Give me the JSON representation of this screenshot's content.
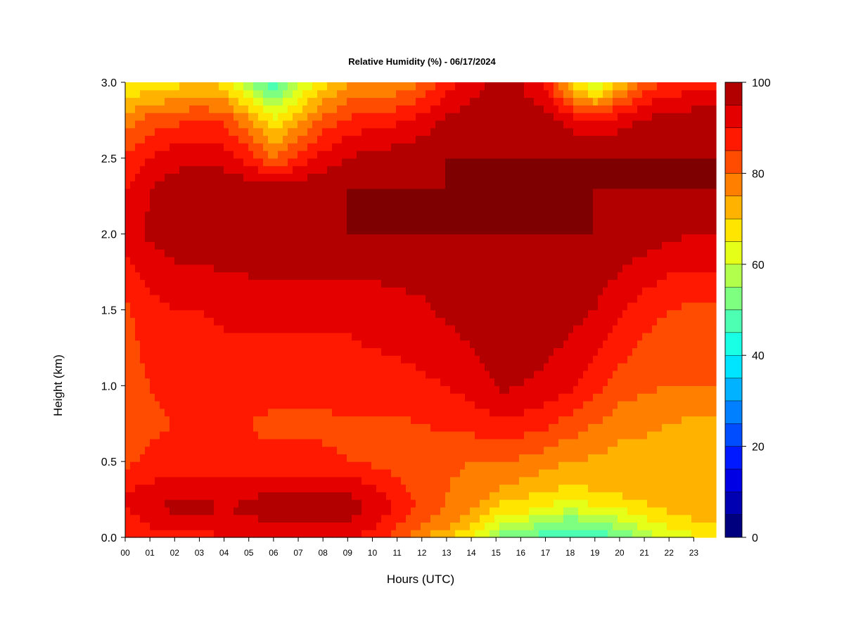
{
  "chart_data": {
    "type": "heatmap",
    "title": "Relative Humidity (%) - 06/17/2024",
    "xlabel": "Hours (UTC)",
    "ylabel": "Height (km)",
    "xlim": [
      0,
      23.9
    ],
    "ylim": [
      0,
      3.0
    ],
    "x_ticks": [
      "00",
      "01",
      "02",
      "03",
      "04",
      "05",
      "06",
      "07",
      "08",
      "09",
      "10",
      "11",
      "12",
      "13",
      "14",
      "15",
      "16",
      "17",
      "18",
      "19",
      "20",
      "21",
      "22",
      "23"
    ],
    "y_ticks": [
      "0.0",
      "0.5",
      "1.0",
      "1.5",
      "2.0",
      "2.5",
      "3.0"
    ],
    "colorbar": {
      "min": 0,
      "max": 100,
      "step": 5,
      "tick_labels": [
        "0",
        "20",
        "40",
        "60",
        "80",
        "100"
      ],
      "colors": [
        "#00007f",
        "#0000b2",
        "#0000e5",
        "#0019ff",
        "#004cff",
        "#007fff",
        "#00b2ff",
        "#00e5ff",
        "#19ffe5",
        "#4cffb2",
        "#7fff7f",
        "#b2ff4c",
        "#e5ff19",
        "#ffe500",
        "#ffb200",
        "#ff7f00",
        "#ff4c00",
        "#ff1900",
        "#e50000",
        "#b20000",
        "#7f0000"
      ]
    },
    "heights_km": [
      0.0,
      0.1,
      0.2,
      0.3,
      0.5,
      0.75,
      1.0,
      1.5,
      2.0,
      2.3,
      2.5,
      2.75,
      3.0
    ],
    "hours_utc": [
      0,
      1,
      2,
      3,
      4,
      5,
      6,
      7,
      8,
      9,
      10,
      11,
      12,
      13,
      14,
      14.7,
      15.3,
      16,
      17,
      18,
      19,
      20,
      21,
      22,
      23,
      23.9
    ],
    "rh_percent": [
      [
        86,
        87,
        88,
        88,
        89,
        89,
        89,
        90,
        90,
        90,
        88,
        83,
        76,
        70,
        65,
        58,
        52,
        52,
        47,
        44,
        46,
        50,
        57,
        62,
        64,
        64
      ],
      [
        88,
        91,
        93,
        94,
        94,
        94,
        95,
        95,
        96,
        95,
        92,
        86,
        81,
        77,
        72,
        66,
        60,
        60,
        55,
        52,
        54,
        58,
        63,
        67,
        69,
        69
      ],
      [
        90,
        93,
        97,
        96,
        95,
        96,
        98,
        99,
        99,
        98,
        94,
        89,
        84,
        80,
        76,
        72,
        68,
        68,
        64,
        62,
        64,
        66,
        69,
        71,
        73,
        73
      ],
      [
        90,
        92,
        94,
        94,
        93,
        94,
        95,
        96,
        96,
        95,
        92,
        87,
        83,
        80,
        78,
        76,
        74,
        72,
        70,
        68,
        70,
        71,
        72,
        73,
        73,
        73
      ],
      [
        84,
        86,
        87,
        87,
        87,
        86,
        86,
        86,
        86,
        85,
        84,
        83,
        82,
        81,
        80,
        80,
        80,
        79,
        77,
        75,
        74,
        73,
        73,
        72,
        72,
        72
      ],
      [
        82,
        84,
        85,
        85,
        85,
        85,
        84,
        84,
        84,
        84,
        84,
        84,
        85,
        86,
        87,
        88,
        89,
        88,
        86,
        83,
        80,
        77,
        76,
        75,
        74,
        74
      ],
      [
        82,
        85,
        87,
        87,
        87,
        87,
        87,
        87,
        87,
        88,
        88,
        88,
        89,
        90,
        92,
        94,
        96,
        95,
        94,
        91,
        87,
        83,
        81,
        80,
        80,
        80
      ],
      [
        84,
        88,
        90,
        90,
        91,
        91,
        91,
        91,
        91,
        91,
        92,
        93,
        94,
        96,
        98,
        99,
        100,
        99,
        98,
        97,
        95,
        91,
        87,
        85,
        84,
        84
      ],
      [
        92,
        96,
        98,
        98,
        99,
        100,
        100,
        100,
        100,
        100,
        100,
        100,
        100,
        100,
        100,
        100,
        100,
        100,
        100,
        100,
        100,
        99,
        98,
        96,
        95,
        95
      ],
      [
        90,
        95,
        98,
        99,
        99,
        98,
        97,
        99,
        99,
        100,
        100,
        100,
        100,
        100,
        100,
        100,
        100,
        100,
        100,
        100,
        100,
        100,
        100,
        100,
        100,
        100
      ],
      [
        86,
        90,
        93,
        94,
        93,
        88,
        80,
        86,
        92,
        95,
        97,
        98,
        99,
        100,
        100,
        100,
        100,
        100,
        100,
        100,
        100,
        100,
        100,
        100,
        100,
        100
      ],
      [
        78,
        82,
        84,
        85,
        84,
        76,
        66,
        74,
        82,
        86,
        88,
        89,
        92,
        96,
        98,
        99,
        99,
        99,
        98,
        93,
        90,
        93,
        96,
        97,
        98,
        98
      ],
      [
        64,
        66,
        68,
        70,
        68,
        56,
        45,
        58,
        68,
        74,
        76,
        76,
        80,
        88,
        92,
        96,
        96,
        95,
        88,
        70,
        58,
        70,
        82,
        86,
        88,
        88
      ]
    ],
    "grid": false,
    "legend": "colorbar-right"
  }
}
